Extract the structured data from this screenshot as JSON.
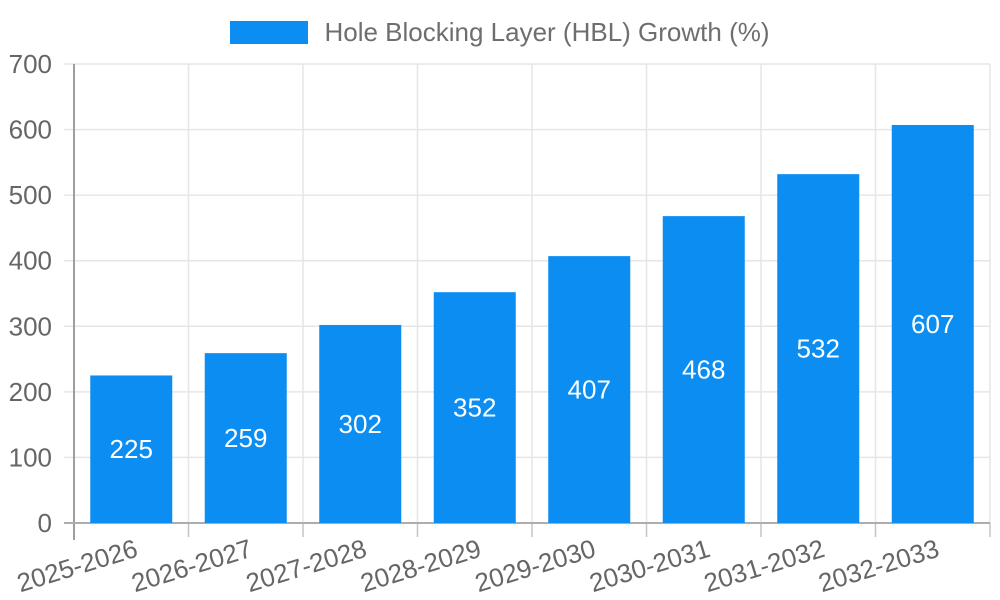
{
  "legend": {
    "label": "Hole Blocking Layer (HBL) Growth (%)"
  },
  "colors": {
    "bar": "#0B8DF2",
    "bar_label": "#FFFFFF",
    "axis_text": "#666666",
    "title_text": "#6E6E6E",
    "gridline": "#E6E6E6",
    "y_axis_line": "#9E9E9E",
    "x_axis_line": "#ADADAD",
    "tick_mark": "#C4C4C4",
    "background": "#FFFFFF"
  },
  "chart_data": {
    "type": "bar",
    "title": "Hole Blocking Layer (HBL) Growth (%)",
    "categories": [
      "2025-2026",
      "2026-2027",
      "2027-2028",
      "2028-2029",
      "2029-2030",
      "2030-2031",
      "2031-2032",
      "2032-2033"
    ],
    "values": [
      225,
      259,
      302,
      352,
      407,
      468,
      532,
      607
    ],
    "bar_value_labels": [
      "225",
      "259",
      "302",
      "352",
      "407",
      "468",
      "532",
      "607"
    ],
    "xlabel": "",
    "ylabel": "",
    "ylim": [
      0,
      700
    ],
    "yticks": [
      0,
      100,
      200,
      300,
      400,
      500,
      600,
      700
    ],
    "grid": true,
    "legend_position": "top",
    "x_label_rotation_deg": -17,
    "value_label_position": "center-inside"
  }
}
